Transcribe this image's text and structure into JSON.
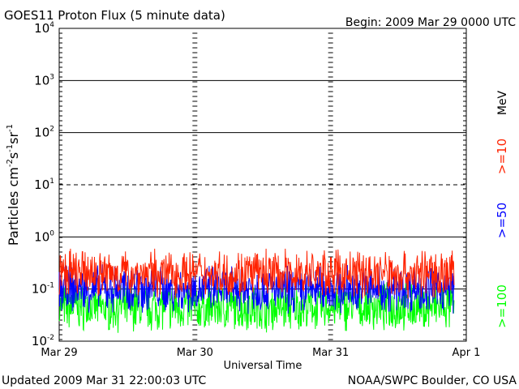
{
  "chart_data": {
    "type": "line",
    "title": "GOES11 Proton Flux (5 minute data)",
    "begin_label": "Begin: 2009 Mar 29 0000 UTC",
    "xlabel": "Universal Time",
    "ylabel_main": "Particles cm",
    "ylabel_sup1": "-2",
    "ylabel_s": "s",
    "ylabel_sup2": "-1",
    "ylabel_sr": "sr",
    "ylabel_sup3": "-1",
    "x_ticks": [
      "Mar 29",
      "Mar 30",
      "Mar 31",
      "Apr 1"
    ],
    "x_range_days": [
      0,
      3
    ],
    "y_scale": "log",
    "ylim": [
      0.01,
      10000
    ],
    "y_ticks": [
      {
        "base": "10",
        "exp": "4"
      },
      {
        "base": "10",
        "exp": "3"
      },
      {
        "base": "10",
        "exp": "2"
      },
      {
        "base": "10",
        "exp": "1"
      },
      {
        "base": "10",
        "exp": "0"
      },
      {
        "base": "10",
        "exp": "-1"
      },
      {
        "base": "10",
        "exp": "-2"
      }
    ],
    "series": [
      {
        "name": ">=10",
        "color": "#ff2200",
        "approx_level": 0.2
      },
      {
        "name": ">=50",
        "color": "#0000ff",
        "approx_level": 0.1
      },
      {
        "name": ">=100",
        "color": "#00ff00",
        "approx_level": 0.045
      }
    ],
    "unit": "MeV",
    "updated_label": "Updated 2009 Mar 31 22:00:03 UTC",
    "credit": "NOAA/SWPC Boulder, CO USA"
  }
}
